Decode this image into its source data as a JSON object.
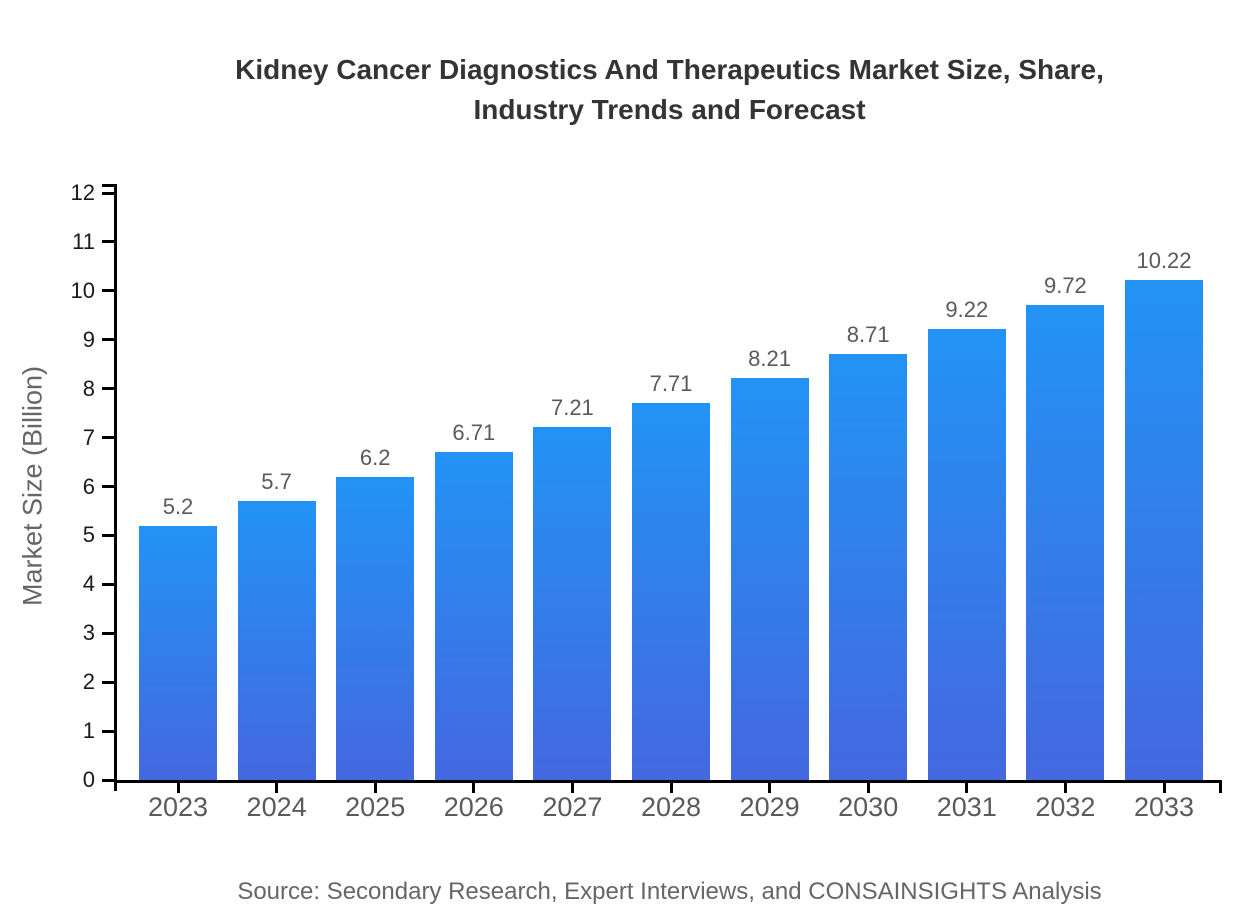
{
  "header": {
    "title_line1": "Kidney Cancer Diagnostics And Therapeutics Market Size, Share,",
    "title_line2": "Industry Trends and Forecast"
  },
  "chart_data": {
    "type": "bar",
    "title": "Kidney Cancer Diagnostics And Therapeutics Market Size, Share, Industry Trends and Forecast",
    "categories": [
      "2023",
      "2024",
      "2025",
      "2026",
      "2027",
      "2028",
      "2029",
      "2030",
      "2031",
      "2032",
      "2033"
    ],
    "values": [
      5.2,
      5.7,
      6.2,
      6.71,
      7.21,
      7.71,
      8.21,
      8.71,
      9.22,
      9.72,
      10.22
    ],
    "value_labels": [
      "5.2",
      "5.7",
      "6.2",
      "6.71",
      "7.21",
      "7.71",
      "8.21",
      "8.71",
      "9.22",
      "9.72",
      "10.22"
    ],
    "xlabel": "",
    "ylabel": "Market Size (Billion)",
    "ylim": [
      0,
      12
    ],
    "y_ticks": [
      0,
      1,
      2,
      3,
      4,
      5,
      6,
      7,
      8,
      9,
      10,
      11,
      12
    ],
    "grid": false,
    "legend_position": "none",
    "bar_color_top": "#2293F5",
    "bar_color_bottom": "#4468DF",
    "axis_color": "#000000"
  },
  "footer": {
    "source_text": "Source: Secondary Research, Expert Interviews, and CONSAINSIGHTS Analysis"
  }
}
